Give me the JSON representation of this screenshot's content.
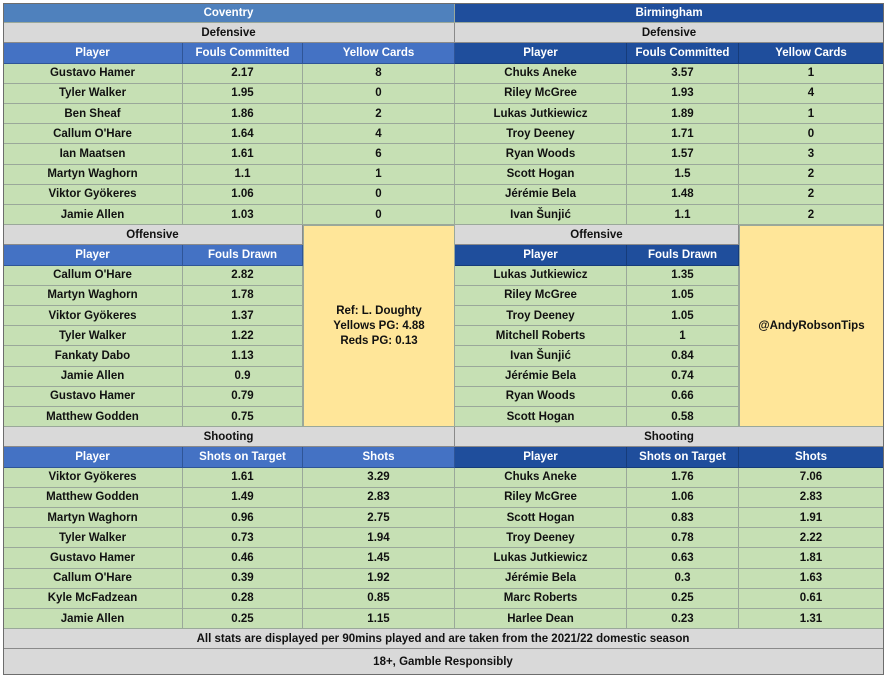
{
  "teams": {
    "left": "Coventry",
    "right": "Birmingham"
  },
  "sections": {
    "defensive": "Defensive",
    "offensive": "Offensive",
    "shooting": "Shooting"
  },
  "columns": {
    "player": "Player",
    "fouls_committed": "Fouls Committed",
    "yellow_cards": "Yellow Cards",
    "fouls_drawn": "Fouls Drawn",
    "shots_on_target": "Shots on Target",
    "shots": "Shots"
  },
  "defensive": {
    "left": [
      [
        "Gustavo Hamer",
        "2.17",
        "8"
      ],
      [
        "Tyler Walker",
        "1.95",
        "0"
      ],
      [
        "Ben Sheaf",
        "1.86",
        "2"
      ],
      [
        "Callum O'Hare",
        "1.64",
        "4"
      ],
      [
        "Ian Maatsen",
        "1.61",
        "6"
      ],
      [
        "Martyn Waghorn",
        "1.1",
        "1"
      ],
      [
        "Viktor Gyökeres",
        "1.06",
        "0"
      ],
      [
        "Jamie Allen",
        "1.03",
        "0"
      ]
    ],
    "right": [
      [
        "Chuks Aneke",
        "3.57",
        "1"
      ],
      [
        "Riley McGree",
        "1.93",
        "4"
      ],
      [
        "Lukas Jutkiewicz",
        "1.89",
        "1"
      ],
      [
        "Troy Deeney",
        "1.71",
        "0"
      ],
      [
        "Ryan Woods",
        "1.57",
        "3"
      ],
      [
        "Scott Hogan",
        "1.5",
        "2"
      ],
      [
        "Jérémie Bela",
        "1.48",
        "2"
      ],
      [
        "Ivan Šunjić",
        "1.1",
        "2"
      ]
    ]
  },
  "offensive": {
    "left": [
      [
        "Callum O'Hare",
        "2.82"
      ],
      [
        "Martyn Waghorn",
        "1.78"
      ],
      [
        "Viktor Gyökeres",
        "1.37"
      ],
      [
        "Tyler Walker",
        "1.22"
      ],
      [
        "Fankaty Dabo",
        "1.13"
      ],
      [
        "Jamie Allen",
        "0.9"
      ],
      [
        "Gustavo Hamer",
        "0.79"
      ],
      [
        "Matthew Godden",
        "0.75"
      ]
    ],
    "right": [
      [
        "Lukas Jutkiewicz",
        "1.35"
      ],
      [
        "Riley McGree",
        "1.05"
      ],
      [
        "Troy Deeney",
        "1.05"
      ],
      [
        "Mitchell Roberts",
        "1"
      ],
      [
        "Ivan Šunjić",
        "0.84"
      ],
      [
        "Jérémie Bela",
        "0.74"
      ],
      [
        "Ryan Woods",
        "0.66"
      ],
      [
        "Scott Hogan",
        "0.58"
      ]
    ]
  },
  "shooting": {
    "left": [
      [
        "Viktor Gyökeres",
        "1.61",
        "3.29"
      ],
      [
        "Matthew Godden",
        "1.49",
        "2.83"
      ],
      [
        "Martyn Waghorn",
        "0.96",
        "2.75"
      ],
      [
        "Tyler Walker",
        "0.73",
        "1.94"
      ],
      [
        "Gustavo Hamer",
        "0.46",
        "1.45"
      ],
      [
        "Callum O'Hare",
        "0.39",
        "1.92"
      ],
      [
        "Kyle McFadzean",
        "0.28",
        "0.85"
      ],
      [
        "Jamie Allen",
        "0.25",
        "1.15"
      ]
    ],
    "right": [
      [
        "Chuks Aneke",
        "1.76",
        "7.06"
      ],
      [
        "Riley McGree",
        "1.06",
        "2.83"
      ],
      [
        "Scott Hogan",
        "0.83",
        "1.91"
      ],
      [
        "Troy Deeney",
        "0.78",
        "2.22"
      ],
      [
        "Lukas Jutkiewicz",
        "0.63",
        "1.81"
      ],
      [
        "Jérémie Bela",
        "0.3",
        "1.63"
      ],
      [
        "Marc Roberts",
        "0.25",
        "0.61"
      ],
      [
        "Harlee Dean",
        "0.23",
        "1.31"
      ]
    ]
  },
  "referee": {
    "name": "Ref: L. Doughty",
    "yellows": "Yellows PG: 4.88",
    "reds": "Reds PG: 0.13"
  },
  "twitter": "@AndyRobsonTips",
  "footer": {
    "note": "All stats are displayed per 90mins played and are taken from the 2021/22 domestic season",
    "gamble": "18+, Gamble Responsibly"
  }
}
